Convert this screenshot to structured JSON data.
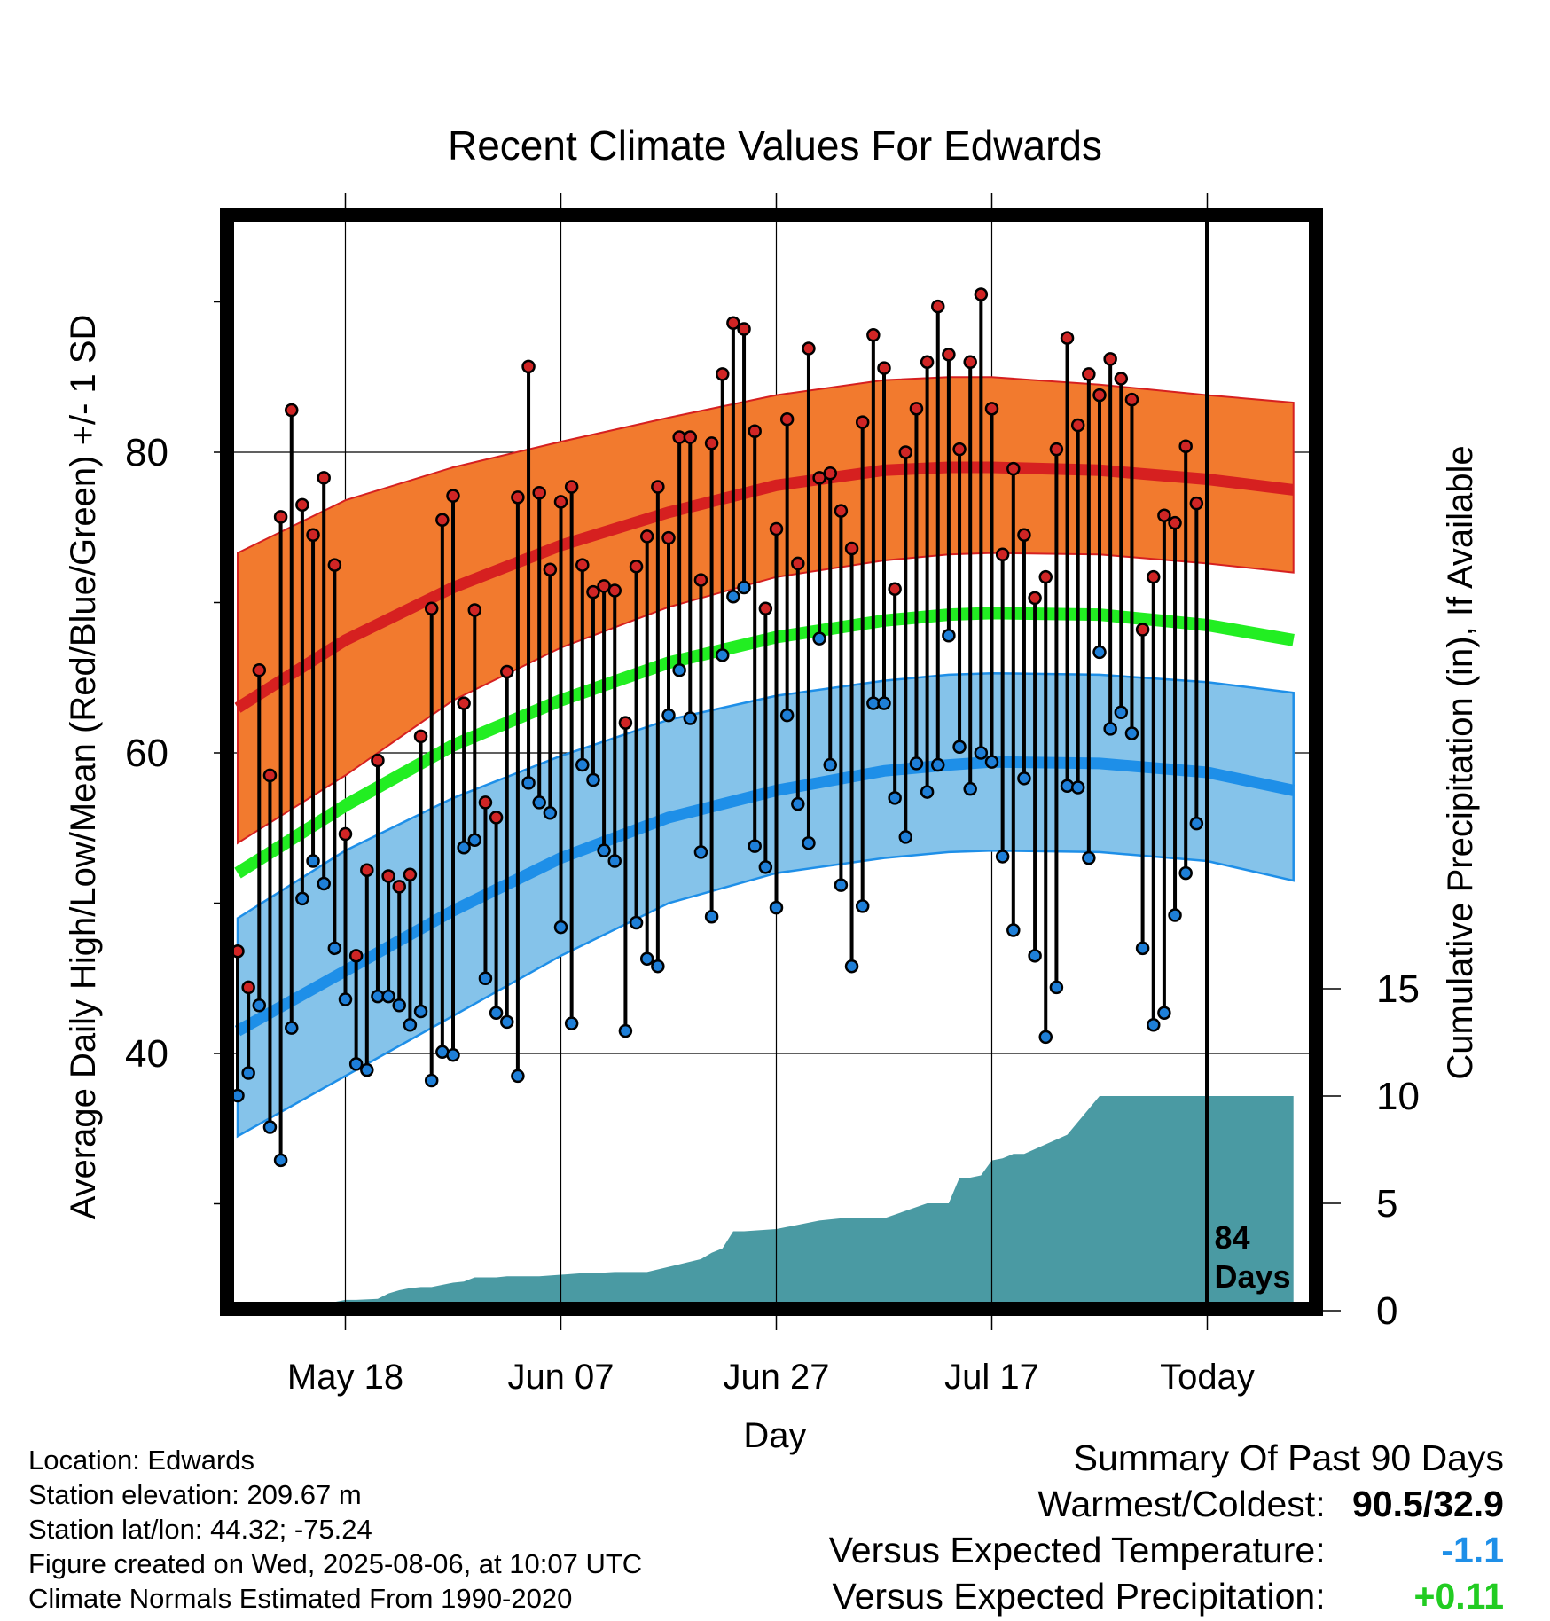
{
  "chart_data": {
    "type": "line",
    "title": "Recent Climate Values For Edwards",
    "xlabel": "Day",
    "ylabel": "Average Daily High/Low/Mean (Red/Blue/Green) +/- 1 SD",
    "y2label": "Cumulative Precipitation (in), If Available",
    "ylim": [
      24,
      96
    ],
    "y_ticks": [
      40,
      60,
      80
    ],
    "y2_ticks": [
      0,
      5,
      10,
      15
    ],
    "y2lim": [
      0,
      50
    ],
    "x_day_range": [
      0,
      98
    ],
    "x_ticks": [
      {
        "day": 10,
        "label": "May 18"
      },
      {
        "day": 30,
        "label": "Jun 07"
      },
      {
        "day": 50,
        "label": "Jun 27"
      },
      {
        "day": 70,
        "label": "Jul 17"
      },
      {
        "day": 90,
        "label": "Today"
      }
    ],
    "marker": {
      "day": 90,
      "label": [
        "84",
        "Days"
      ]
    },
    "normals": {
      "day": [
        0,
        10,
        20,
        30,
        40,
        50,
        60,
        66,
        70,
        80,
        90,
        98
      ],
      "high_mean": [
        63.0,
        67.5,
        71.0,
        73.8,
        76.0,
        77.8,
        78.8,
        79.0,
        79.0,
        78.8,
        78.2,
        77.5
      ],
      "high_upper": [
        73.3,
        76.8,
        79.0,
        80.7,
        82.3,
        83.8,
        84.8,
        85.0,
        85.0,
        84.5,
        83.8,
        83.3
      ],
      "high_lower": [
        54.0,
        58.5,
        63.5,
        67.0,
        69.7,
        71.7,
        72.8,
        73.2,
        73.3,
        73.2,
        72.6,
        72.0
      ],
      "mean": [
        52.0,
        56.5,
        60.5,
        63.5,
        66.0,
        67.7,
        68.8,
        69.2,
        69.3,
        69.2,
        68.5,
        67.5
      ],
      "low_mean": [
        41.5,
        45.5,
        49.5,
        53.0,
        55.7,
        57.5,
        58.8,
        59.2,
        59.4,
        59.3,
        58.7,
        57.5
      ],
      "low_upper": [
        49.0,
        53.5,
        57.0,
        59.8,
        62.2,
        63.8,
        64.8,
        65.2,
        65.3,
        65.2,
        64.7,
        64.0
      ],
      "low_lower": [
        34.5,
        38.5,
        42.5,
        46.5,
        50.0,
        52.0,
        53.0,
        53.4,
        53.5,
        53.4,
        52.8,
        51.5
      ]
    },
    "daily": {
      "high": [
        46.8,
        44.4,
        65.5,
        58.5,
        75.7,
        82.8,
        76.5,
        74.5,
        78.3,
        72.5,
        54.6,
        46.5,
        52.2,
        59.5,
        51.8,
        51.1,
        51.9,
        61.1,
        69.6,
        75.5,
        77.1,
        63.3,
        69.5,
        56.7,
        55.7,
        65.4,
        77.0,
        85.7,
        77.3,
        72.2,
        76.7,
        77.7,
        72.5,
        70.7,
        71.1,
        70.8,
        62.0,
        72.4,
        74.4,
        77.7,
        74.3,
        81.0,
        81.0,
        71.5,
        80.6,
        85.2,
        88.6,
        88.2,
        81.4,
        69.6,
        74.9,
        82.2,
        72.6,
        86.9,
        78.3,
        78.6,
        76.1,
        73.6,
        82.0,
        87.8,
        85.6,
        70.9,
        80.0,
        82.9,
        86.0,
        89.7,
        86.5,
        80.2,
        86.0,
        90.5,
        82.9,
        73.2,
        78.9,
        74.5,
        70.3,
        71.7,
        80.2,
        87.6,
        81.8,
        85.2,
        83.8,
        86.2,
        84.9,
        83.5,
        68.2,
        71.7,
        75.8,
        75.3,
        80.4,
        76.6
      ],
      "low": [
        37.2,
        38.7,
        43.2,
        35.1,
        32.9,
        41.7,
        50.3,
        52.8,
        51.3,
        47.0,
        43.6,
        39.3,
        38.9,
        43.8,
        43.8,
        43.2,
        41.9,
        42.8,
        38.2,
        40.1,
        39.9,
        53.7,
        54.2,
        45.0,
        42.7,
        42.1,
        38.5,
        58.0,
        56.7,
        56.0,
        48.4,
        42.0,
        59.2,
        58.2,
        53.5,
        52.8,
        41.5,
        48.7,
        46.3,
        45.8,
        62.5,
        65.5,
        62.3,
        53.4,
        49.1,
        66.5,
        70.4,
        71.0,
        53.8,
        52.4,
        49.7,
        62.5,
        56.6,
        54.0,
        67.6,
        59.2,
        51.2,
        45.8,
        49.8,
        63.3,
        63.3,
        57.0,
        54.4,
        59.3,
        57.4,
        59.2,
        67.8,
        60.4,
        57.6,
        60.0,
        59.4,
        53.1,
        48.2,
        58.3,
        46.5,
        41.1,
        44.4,
        57.8,
        57.7,
        53.0,
        66.7,
        61.6,
        62.7,
        61.3,
        47.0,
        41.9,
        42.7,
        49.2,
        52.0,
        55.3
      ]
    },
    "precip_cumulative": {
      "day": [
        0,
        2,
        8,
        9,
        10,
        11,
        13,
        14,
        15,
        16,
        17,
        18,
        20,
        21,
        22,
        24,
        25,
        28,
        32,
        33,
        35,
        38,
        43,
        44,
        45,
        46,
        47,
        50,
        52,
        54,
        56,
        60,
        64,
        66,
        67,
        68,
        69,
        70,
        71,
        72,
        73,
        77,
        80,
        81,
        98
      ],
      "value": [
        0,
        0.05,
        0.05,
        0.4,
        0.5,
        0.5,
        0.55,
        0.8,
        0.95,
        1.05,
        1.1,
        1.1,
        1.3,
        1.35,
        1.55,
        1.55,
        1.6,
        1.6,
        1.75,
        1.75,
        1.8,
        1.8,
        2.4,
        2.7,
        2.9,
        3.7,
        3.7,
        3.8,
        4.0,
        4.2,
        4.3,
        4.3,
        5.0,
        5.0,
        6.2,
        6.2,
        6.3,
        7.0,
        7.1,
        7.3,
        7.3,
        8.2,
        10.0,
        10.0,
        10.0
      ]
    },
    "colors": {
      "high_band": "#f27a2e",
      "high_mean": "#d62020",
      "low_band": "#85c3ea",
      "low_edge": "#1e8fe8",
      "low_mean": "#1e8fe8",
      "mean": "#22ee22",
      "precip": "#4a9aa3",
      "high_point": "#d02525",
      "low_point": "#1e7fd8"
    },
    "grid": true
  },
  "location": {
    "name_line": "Location: Edwards",
    "elevation_line": "Station elevation: 209.67 m",
    "latlon_line": "Station lat/lon: 44.32; -75.24",
    "created_line": "Figure created on Wed, 2025-08-06, at 10:07 UTC",
    "normals_line": "Climate Normals Estimated From 1990-2020"
  },
  "summary": {
    "heading": "Summary Of Past 90 Days",
    "warmest_label": "Warmest/Coldest:",
    "warmest_value": "90.5/32.9",
    "temp_label": "Versus Expected Temperature:",
    "temp_value": "-1.1",
    "precip_label": "Versus Expected Precipitation:",
    "precip_value": "+0.11"
  }
}
